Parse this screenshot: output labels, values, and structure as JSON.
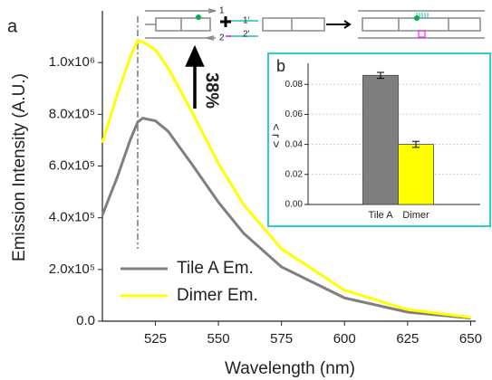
{
  "schematic": {
    "labels": [
      "1",
      "2",
      "1'",
      "2'"
    ]
  },
  "chart_data": [
    {
      "type": "line",
      "panel_label": "a",
      "x_label": "Wavelength (nm)",
      "y_label": "Emission Intensity (A.U.)",
      "annotation": "38%",
      "marker_line_x": 518,
      "x": [
        504,
        510,
        515,
        518,
        520,
        525,
        530,
        540,
        550,
        560,
        575,
        600,
        625,
        650
      ],
      "series": [
        {
          "name": "Tile A Em.",
          "color": "#7f7f7f",
          "values": [
            410000,
            560000,
            700000,
            770000,
            785000,
            775000,
            735000,
            600000,
            460000,
            340000,
            210000,
            90000,
            35000,
            12000
          ]
        },
        {
          "name": "Dimer Em.",
          "color": "#ffff00",
          "values": [
            690000,
            880000,
            1020000,
            1085000,
            1080000,
            1050000,
            980000,
            800000,
            610000,
            450000,
            280000,
            120000,
            45000,
            15000
          ]
        }
      ],
      "xlim": [
        504,
        652
      ],
      "xticks": [
        525,
        550,
        575,
        600,
        625,
        650
      ],
      "ylim": [
        0,
        1200000
      ],
      "yticks": [
        {
          "value": 0,
          "label": "0.0"
        },
        {
          "value": 200000,
          "label": "2.0x10⁵"
        },
        {
          "value": 400000,
          "label": "4.0x10⁵"
        },
        {
          "value": 600000,
          "label": "6.0x10⁵"
        },
        {
          "value": 800000,
          "label": "8.0x10⁵"
        },
        {
          "value": 1000000,
          "label": "1.0x10⁶"
        }
      ]
    },
    {
      "type": "bar",
      "panel_label": "b",
      "y_label": "< r >",
      "categories": [
        "Tile A",
        "Dimer"
      ],
      "values": [
        0.086,
        0.04
      ],
      "errors": [
        0.002,
        0.002
      ],
      "colors": [
        "#7f7f7f",
        "#ffff00"
      ],
      "ylim": [
        0,
        0.094
      ],
      "yticks": [
        {
          "value": 0,
          "label": "0.00"
        },
        0.02,
        0.04,
        0.06,
        0.08
      ],
      "grid": true
    }
  ]
}
